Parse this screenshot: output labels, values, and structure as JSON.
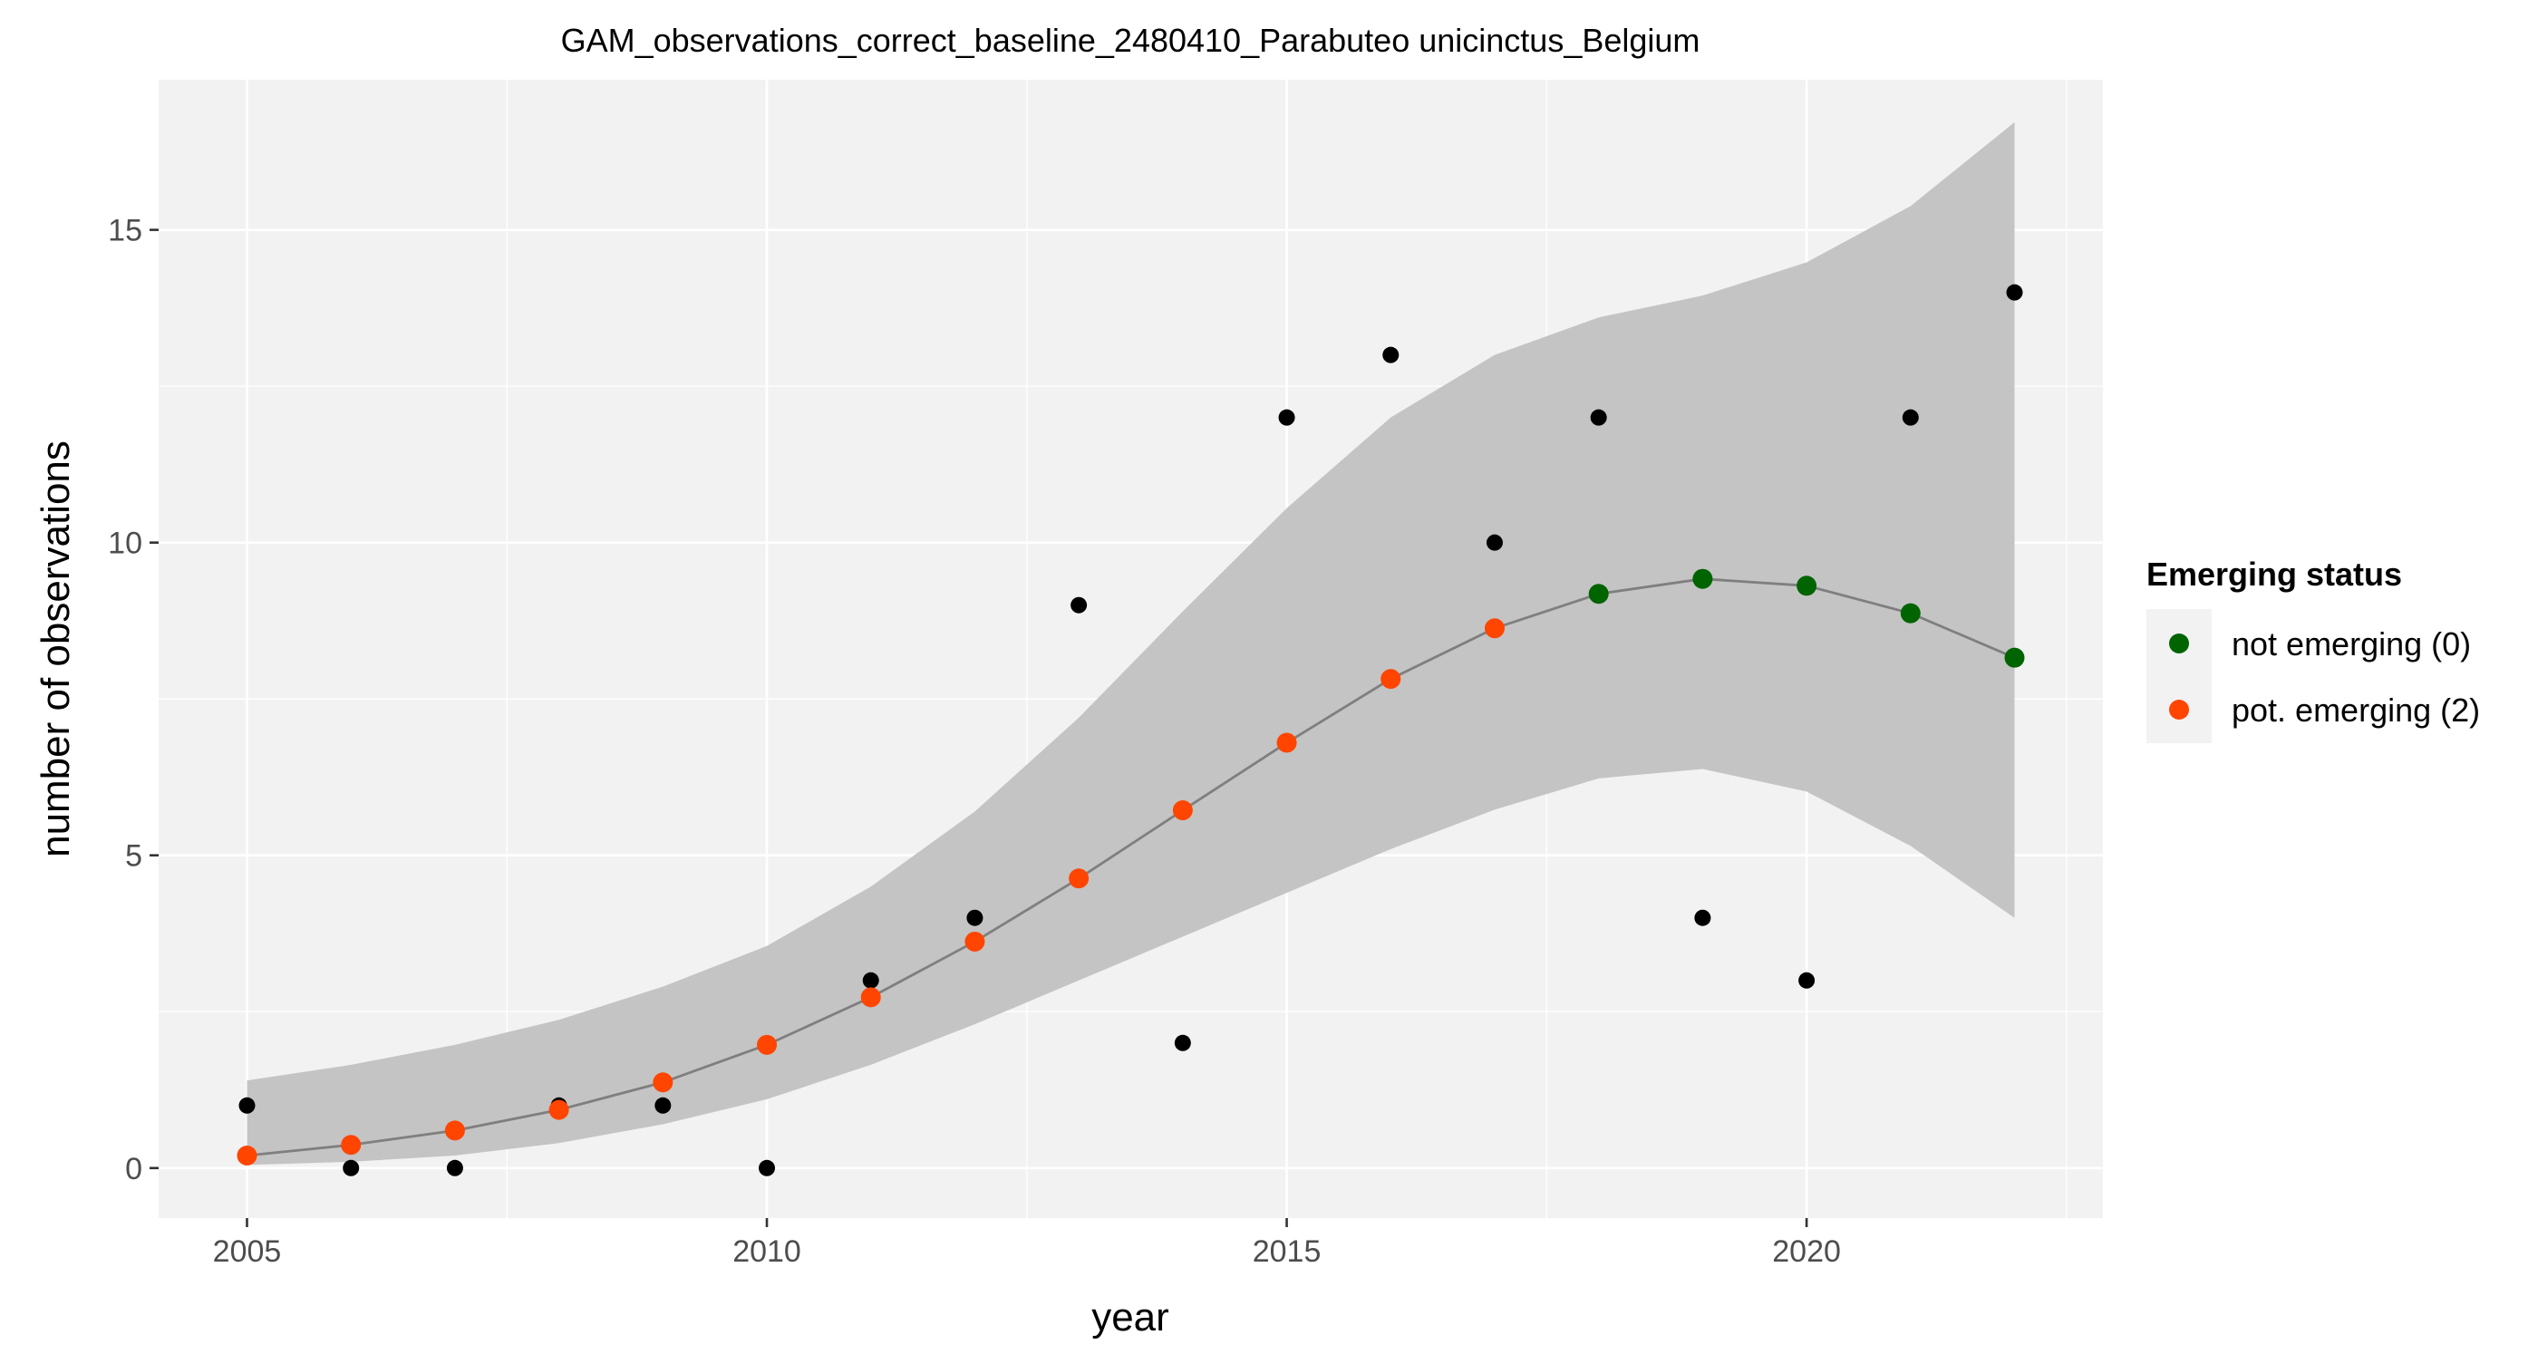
{
  "chart_data": {
    "type": "scatter",
    "title": "GAM_observations_correct_baseline_2480410_Parabuteo unicinctus_Belgium",
    "xlabel": "year",
    "ylabel": "number of observations",
    "xlim": [
      2004.15,
      2022.85
    ],
    "ylim": [
      -0.8,
      17.4
    ],
    "x_ticks": [
      2005,
      2010,
      2015,
      2020
    ],
    "y_ticks": [
      0,
      5,
      10,
      15
    ],
    "grid": true,
    "legend": {
      "title": "Emerging status",
      "placement": "right",
      "entries": [
        {
          "label": "not emerging (0)",
          "color": "#006400"
        },
        {
          "label": "pot. emerging (2)",
          "color": "#FF4500"
        }
      ]
    },
    "observed": {
      "x": [
        2005,
        2006,
        2007,
        2008,
        2009,
        2010,
        2011,
        2012,
        2013,
        2014,
        2015,
        2016,
        2017,
        2018,
        2019,
        2020,
        2021,
        2022
      ],
      "y": [
        1,
        0,
        0,
        1,
        1,
        0,
        3,
        4,
        9,
        2,
        12,
        13,
        10,
        12,
        4,
        3,
        12,
        14
      ],
      "color": "#000000"
    },
    "fit": {
      "x": [
        2005,
        2006,
        2007,
        2008,
        2009,
        2010,
        2011,
        2012,
        2013,
        2014,
        2015,
        2016,
        2017,
        2018,
        2019,
        2020,
        2021,
        2022
      ],
      "y": [
        0.2,
        0.37,
        0.6,
        0.93,
        1.37,
        1.97,
        2.73,
        3.62,
        4.63,
        5.72,
        6.8,
        7.82,
        8.63,
        9.18,
        9.42,
        9.31,
        8.87,
        8.16
      ],
      "status": [
        2,
        2,
        2,
        2,
        2,
        2,
        2,
        2,
        2,
        2,
        2,
        2,
        2,
        0,
        0,
        0,
        0,
        0
      ],
      "lower": [
        0.05,
        0.1,
        0.2,
        0.4,
        0.7,
        1.1,
        1.65,
        2.3,
        3.0,
        3.7,
        4.4,
        5.1,
        5.73,
        6.23,
        6.38,
        6.02,
        5.15,
        4.0
      ],
      "upper": [
        1.4,
        1.65,
        1.97,
        2.37,
        2.9,
        3.55,
        4.5,
        5.7,
        7.2,
        8.9,
        10.55,
        12.0,
        13.0,
        13.6,
        13.95,
        14.48,
        15.38,
        16.72
      ],
      "line_color": "#7f7f7f",
      "band_color": "#c4c4c4"
    }
  }
}
